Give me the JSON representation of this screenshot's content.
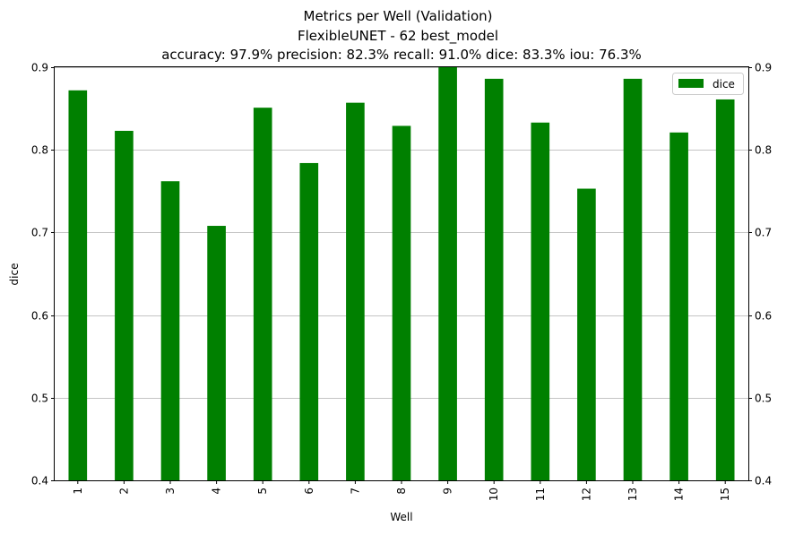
{
  "chart_data": {
    "type": "bar",
    "title": "Metrics per Well (Validation)",
    "subtitle": "FlexibleUNET - 62 best_model",
    "summary": "accuracy: 97.9% precision: 82.3% recall: 91.0% dice: 83.3% iou: 76.3%",
    "xlabel": "Well",
    "ylabel": "dice",
    "categories": [
      "1",
      "2",
      "3",
      "4",
      "5",
      "6",
      "7",
      "8",
      "9",
      "10",
      "11",
      "12",
      "13",
      "14",
      "15"
    ],
    "series": [
      {
        "name": "dice",
        "color": "#008000",
        "values": [
          0.872,
          0.823,
          0.762,
          0.708,
          0.851,
          0.784,
          0.857,
          0.829,
          0.903,
          0.886,
          0.833,
          0.753,
          0.886,
          0.821,
          0.861
        ]
      }
    ],
    "ylim": [
      0.4,
      0.9
    ],
    "yticks": [
      "0.4",
      "0.5",
      "0.6",
      "0.7",
      "0.8",
      "0.9"
    ],
    "right_yticks": [
      "0.4",
      "0.5",
      "0.6",
      "0.7",
      "0.8",
      "0.9"
    ],
    "grid": "horizontal",
    "legend": "top-right"
  }
}
